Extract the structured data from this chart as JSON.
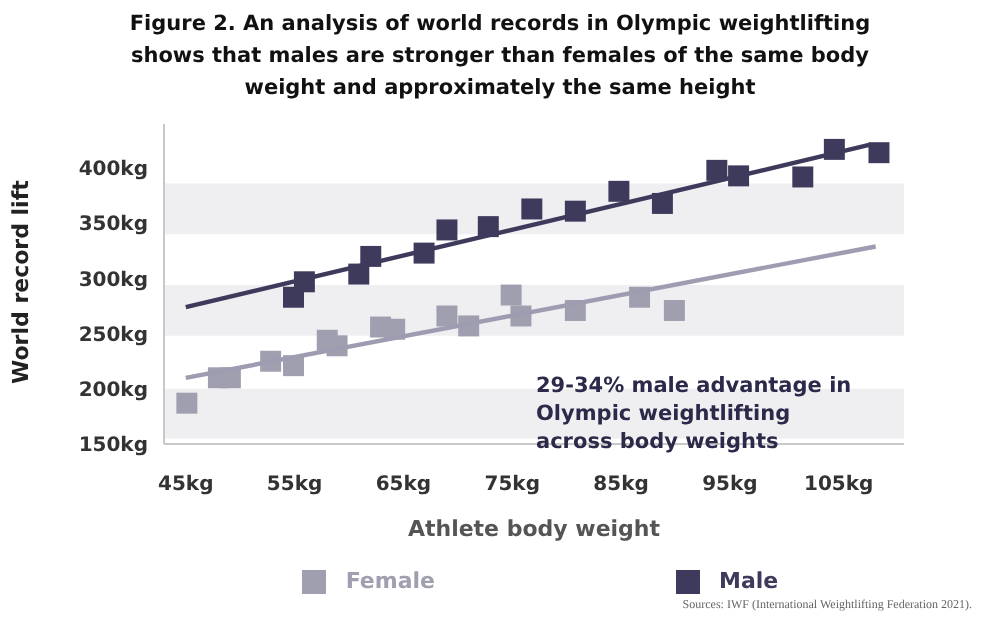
{
  "chart_data": {
    "type": "scatter",
    "title": "Figure 2. An analysis of world records in Olympic weightlifting shows that males are stronger than females of the same body weight and approximately the same height",
    "xlabel": "Athlete body weight",
    "ylabel": "World record lift",
    "xlim": [
      43,
      111
    ],
    "xticks": [
      {
        "value": 45,
        "label": "45kg"
      },
      {
        "value": 55,
        "label": "55kg"
      },
      {
        "value": 65,
        "label": "65kg"
      },
      {
        "value": 75,
        "label": "75kg"
      },
      {
        "value": 85,
        "label": "85kg"
      },
      {
        "value": 95,
        "label": "95kg"
      },
      {
        "value": 105,
        "label": "105kg"
      }
    ],
    "ylim": [
      150,
      440
    ],
    "yticks": [
      {
        "value": 150,
        "label": "150kg"
      },
      {
        "value": 200,
        "label": "200kg"
      },
      {
        "value": 250,
        "label": "250kg"
      },
      {
        "value": 300,
        "label": "300kg"
      },
      {
        "value": 350,
        "label": "350kg"
      },
      {
        "value": 400,
        "label": "400kg"
      }
    ],
    "marker": "square",
    "legend": "bottom",
    "grid": false,
    "bands": [
      {
        "axis": "y",
        "from": 155,
        "to": 200,
        "color": "#efeef0"
      },
      {
        "axis": "y",
        "from": 248,
        "to": 294,
        "color": "#efeef0"
      },
      {
        "axis": "y",
        "from": 340,
        "to": 386,
        "color": "#efeef0"
      }
    ],
    "series": [
      {
        "name": "Female",
        "color": "#a09fb0",
        "x": [
          45.1,
          48,
          49.1,
          52.8,
          54.9,
          58,
          58.9,
          62.9,
          64.2,
          69,
          71,
          74.9,
          75.8,
          80.8,
          86.7,
          89.9
        ],
        "values": [
          187,
          210,
          210,
          225,
          221,
          244,
          239,
          256,
          254,
          266,
          257,
          285,
          266,
          271,
          283,
          271
        ]
      },
      {
        "name": "Male",
        "color": "#3d3a5c",
        "x": [
          54.9,
          55.9,
          60.9,
          62,
          66.9,
          69,
          72.8,
          76.8,
          80.8,
          84.8,
          88.8,
          93.8,
          95.8,
          101.7,
          104.6,
          108.7
        ],
        "values": [
          283,
          297,
          304,
          320,
          323,
          344,
          347,
          363,
          361,
          379,
          368,
          398,
          393,
          392,
          417,
          414
        ]
      },
      {
        "type": "line",
        "marker": "none",
        "color": "#9e9cb0",
        "x": [
          45,
          108.4
        ],
        "values": [
          210,
          329
        ]
      },
      {
        "type": "line",
        "marker": "none",
        "color": "#3d3a5c",
        "x": [
          45,
          107.8
        ],
        "values": [
          274,
          421
        ]
      }
    ],
    "annotations": [
      "29-34% male advantage in Olympic weightlifting across body weights",
      "Sources: IWF (International Weightlifting Federation 2021)."
    ]
  }
}
